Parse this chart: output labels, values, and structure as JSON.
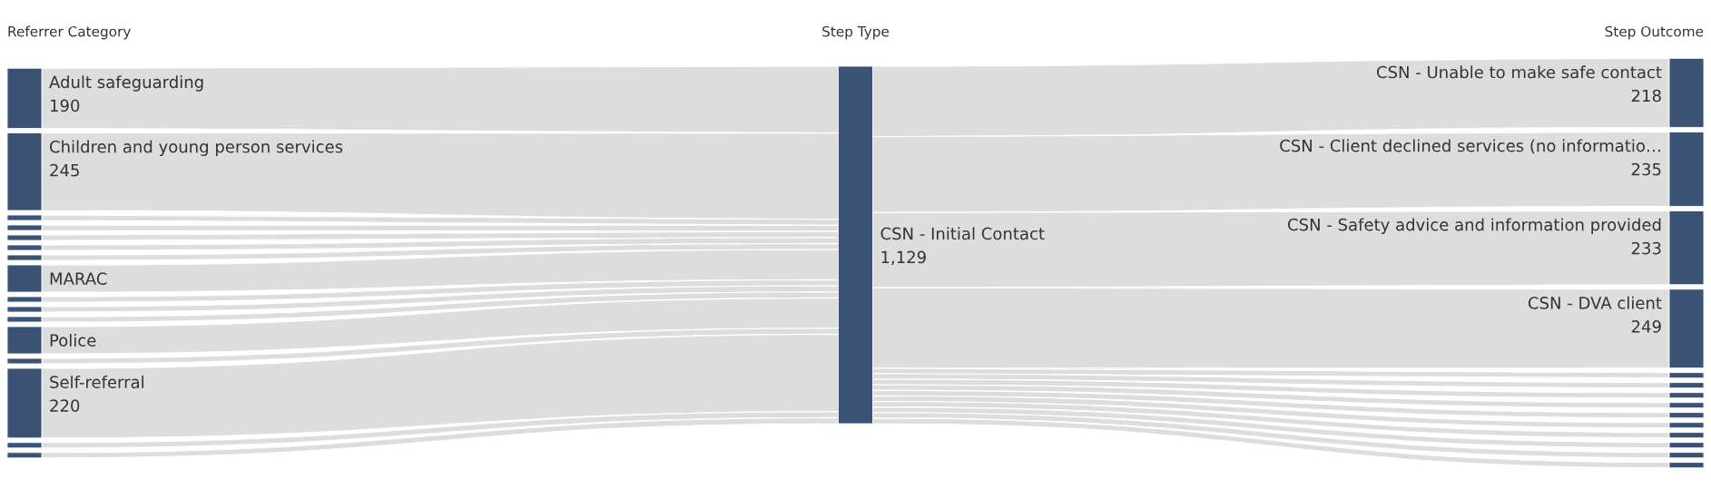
{
  "chart_data": {
    "type": "other",
    "annotations": [
      "Referrer Category",
      "Step Type",
      "Step Outcome"
    ],
    "categories": [
      "Adult safeguarding",
      "Children and young person services",
      null,
      null,
      null,
      null,
      null,
      "MARAC",
      null,
      null,
      null,
      "Police",
      null,
      "Self-referral",
      null,
      null,
      "CSN - Initial Contact",
      "CSN - Unable to make safe contact",
      "CSN - Client declined services (no informatio…",
      "CSN - Safety advice and information provided",
      "CSN - DVA client",
      null,
      null,
      null,
      null,
      null,
      null,
      null,
      null,
      null,
      null
    ],
    "values": [
      190,
      245,
      null,
      null,
      null,
      null,
      null,
      null,
      null,
      null,
      null,
      null,
      null,
      220,
      null,
      null,
      1129,
      218,
      235,
      233,
      249,
      null,
      null,
      null,
      null,
      null,
      null,
      null,
      null,
      null,
      null
    ],
    "value_labels": [
      "190",
      "245",
      null,
      null,
      null,
      null,
      null,
      null,
      null,
      null,
      null,
      null,
      null,
      "220",
      null,
      null,
      "1,129",
      "218",
      "235",
      "233",
      "249",
      null,
      null,
      null,
      null,
      null,
      null,
      null,
      null,
      null,
      null
    ]
  }
}
